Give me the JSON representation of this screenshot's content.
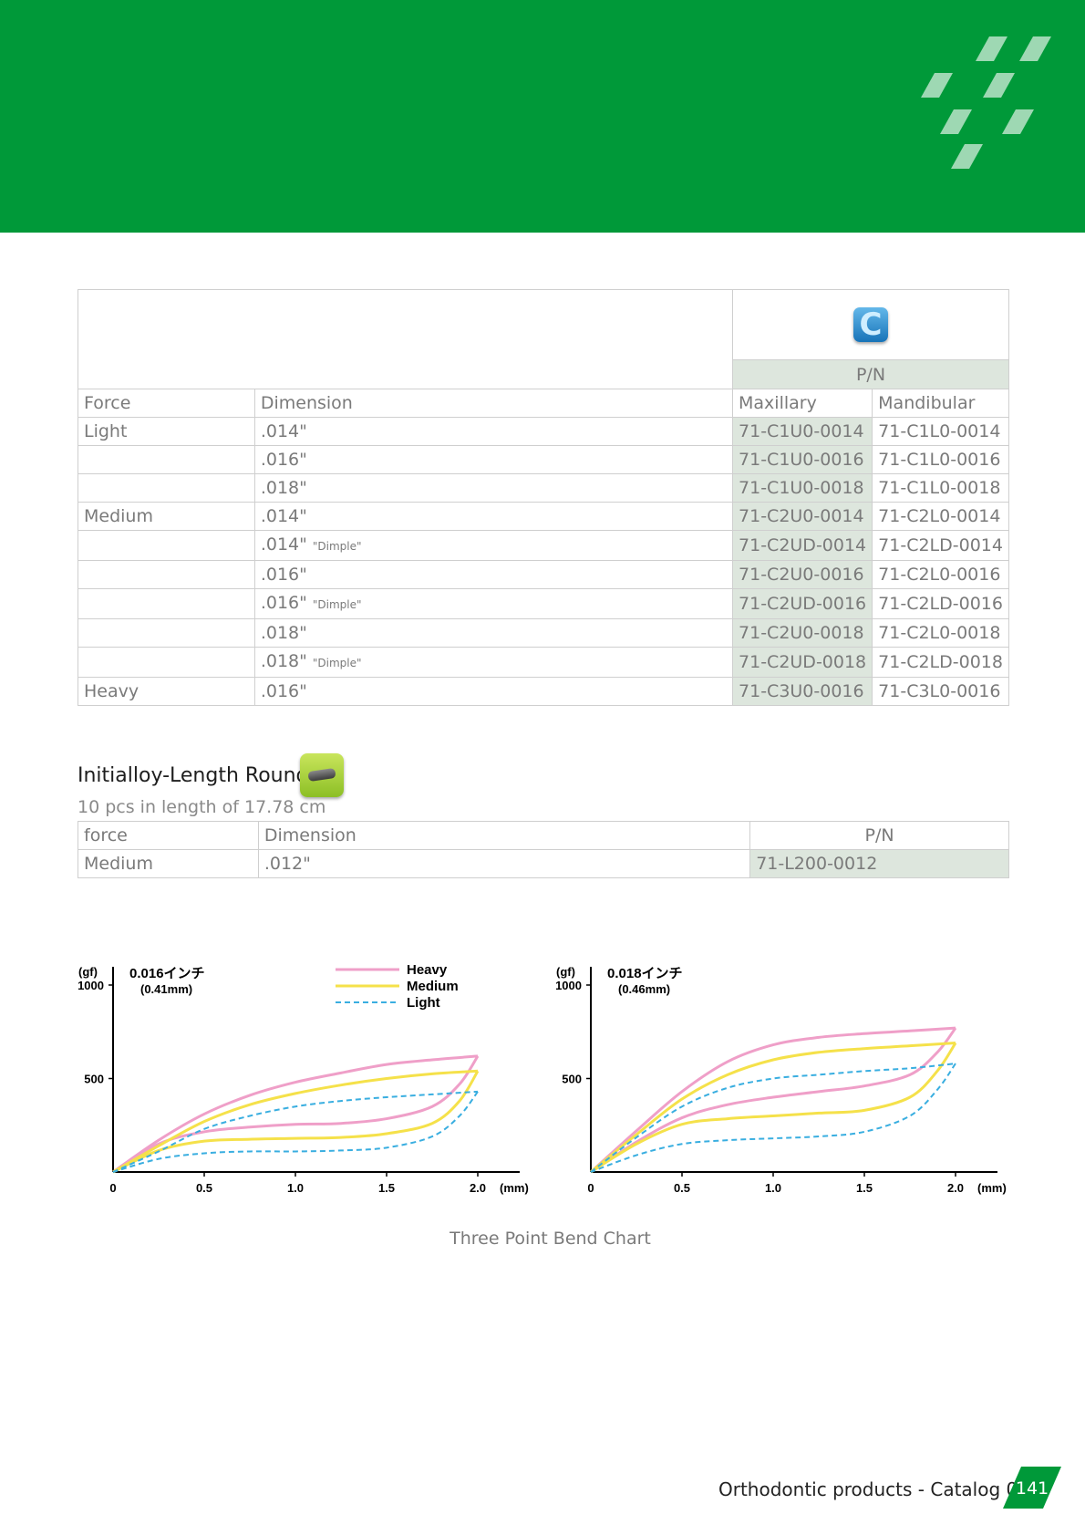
{
  "main_table": {
    "header": {
      "pn": "P/N"
    },
    "columns": [
      "Force",
      "Dimension",
      "Maxillary",
      "Mandibular"
    ],
    "icon_letter": "C",
    "rows": [
      {
        "force": "Light",
        "dim": ".014\"",
        "note": "",
        "max": "71-C1U0-0014",
        "man": "71-C1L0-0014"
      },
      {
        "force": "",
        "dim": ".016\"",
        "note": "",
        "max": "71-C1U0-0016",
        "man": "71-C1L0-0016"
      },
      {
        "force": "",
        "dim": ".018\"",
        "note": "",
        "max": "71-C1U0-0018",
        "man": "71-C1L0-0018"
      },
      {
        "force": "Medium",
        "dim": ".014\"",
        "note": "",
        "max": "71-C2U0-0014",
        "man": "71-C2L0-0014"
      },
      {
        "force": "",
        "dim": ".014\"",
        "note": "\"Dimple\"",
        "max": "71-C2UD-0014",
        "man": "71-C2LD-0014"
      },
      {
        "force": "",
        "dim": ".016\"",
        "note": "",
        "max": "71-C2U0-0016",
        "man": "71-C2L0-0016"
      },
      {
        "force": "",
        "dim": ".016\"",
        "note": "\"Dimple\"",
        "max": "71-C2UD-0016",
        "man": "71-C2LD-0016"
      },
      {
        "force": "",
        "dim": ".018\"",
        "note": "",
        "max": "71-C2U0-0018",
        "man": "71-C2L0-0018"
      },
      {
        "force": "",
        "dim": ".018\"",
        "note": "\"Dimple\"",
        "max": "71-C2UD-0018",
        "man": "71-C2LD-0018"
      },
      {
        "force": "Heavy",
        "dim": ".016\"",
        "note": "",
        "max": "71-C3U0-0016",
        "man": "71-C3L0-0016"
      }
    ]
  },
  "length_section": {
    "title": "Initialloy-Length Round",
    "subtitle": "10 pcs in length of 17.78 cm",
    "columns": [
      "force",
      "Dimension",
      "P/N"
    ],
    "row": {
      "force": "Medium",
      "dim": ".012\"",
      "pn": "71-L200-0012"
    }
  },
  "chart_caption": "Three Point Bend Chart",
  "chart_data": [
    {
      "type": "line",
      "title": "0.016インチ",
      "subtitle": "(0.41mm)",
      "ylabel": "(gf)",
      "xlabel": "(mm)",
      "xlim": [
        0,
        2.25
      ],
      "ylim": [
        0,
        1000
      ],
      "xticks": [
        "0",
        "0.5",
        "1.0",
        "1.5",
        "2.0"
      ],
      "yticks": [
        "500",
        "1000"
      ],
      "legend_position": "top-right",
      "series": [
        {
          "name": "Heavy",
          "color": "#ef9fc8",
          "dash": false,
          "loading": [
            [
              0,
              0
            ],
            [
              0.25,
              170
            ],
            [
              0.5,
              310
            ],
            [
              0.75,
              410
            ],
            [
              1.0,
              480
            ],
            [
              1.25,
              530
            ],
            [
              1.5,
              575
            ],
            [
              1.75,
              600
            ],
            [
              2.0,
              620
            ]
          ],
          "unloading": [
            [
              2.0,
              620
            ],
            [
              1.9,
              470
            ],
            [
              1.75,
              350
            ],
            [
              1.5,
              285
            ],
            [
              1.25,
              260
            ],
            [
              1.0,
              255
            ],
            [
              0.75,
              240
            ],
            [
              0.5,
              215
            ],
            [
              0.25,
              150
            ],
            [
              0,
              0
            ]
          ]
        },
        {
          "name": "Medium",
          "color": "#f5e14a",
          "dash": false,
          "loading": [
            [
              0,
              0
            ],
            [
              0.25,
              140
            ],
            [
              0.5,
              270
            ],
            [
              0.75,
              360
            ],
            [
              1.0,
              420
            ],
            [
              1.25,
              465
            ],
            [
              1.5,
              500
            ],
            [
              1.75,
              525
            ],
            [
              2.0,
              540
            ]
          ],
          "unloading": [
            [
              2.0,
              540
            ],
            [
              1.9,
              380
            ],
            [
              1.75,
              260
            ],
            [
              1.5,
              205
            ],
            [
              1.25,
              185
            ],
            [
              1.0,
              180
            ],
            [
              0.75,
              175
            ],
            [
              0.5,
              165
            ],
            [
              0.25,
              115
            ],
            [
              0,
              0
            ]
          ]
        },
        {
          "name": "Light",
          "color": "#39aee0",
          "dash": true,
          "loading": [
            [
              0,
              0
            ],
            [
              0.25,
              110
            ],
            [
              0.5,
              230
            ],
            [
              0.75,
              300
            ],
            [
              1.0,
              350
            ],
            [
              1.25,
              380
            ],
            [
              1.5,
              400
            ],
            [
              1.75,
              415
            ],
            [
              2.0,
              430
            ]
          ],
          "unloading": [
            [
              2.0,
              430
            ],
            [
              1.9,
              300
            ],
            [
              1.75,
              190
            ],
            [
              1.5,
              130
            ],
            [
              1.25,
              115
            ],
            [
              1.0,
              110
            ],
            [
              0.75,
              110
            ],
            [
              0.5,
              100
            ],
            [
              0.25,
              70
            ],
            [
              0,
              0
            ]
          ]
        }
      ]
    },
    {
      "type": "line",
      "title": "0.018インチ",
      "subtitle": "(0.46mm)",
      "ylabel": "(gf)",
      "xlabel": "(mm)",
      "xlim": [
        0,
        2.25
      ],
      "ylim": [
        0,
        1000
      ],
      "xticks": [
        "0",
        "0.5",
        "1.0",
        "1.5",
        "2.0"
      ],
      "yticks": [
        "500",
        "1000"
      ],
      "series": [
        {
          "name": "Heavy",
          "color": "#ef9fc8",
          "dash": false,
          "loading": [
            [
              0,
              0
            ],
            [
              0.25,
              220
            ],
            [
              0.5,
              430
            ],
            [
              0.75,
              590
            ],
            [
              1.0,
              680
            ],
            [
              1.25,
              720
            ],
            [
              1.5,
              740
            ],
            [
              1.75,
              755
            ],
            [
              2.0,
              770
            ]
          ],
          "unloading": [
            [
              2.0,
              770
            ],
            [
              1.9,
              640
            ],
            [
              1.75,
              520
            ],
            [
              1.5,
              460
            ],
            [
              1.25,
              430
            ],
            [
              1.0,
              400
            ],
            [
              0.75,
              360
            ],
            [
              0.5,
              290
            ],
            [
              0.25,
              160
            ],
            [
              0,
              0
            ]
          ]
        },
        {
          "name": "Medium",
          "color": "#f5e14a",
          "dash": false,
          "loading": [
            [
              0,
              0
            ],
            [
              0.25,
              200
            ],
            [
              0.5,
              390
            ],
            [
              0.75,
              520
            ],
            [
              1.0,
              600
            ],
            [
              1.25,
              640
            ],
            [
              1.5,
              660
            ],
            [
              1.75,
              675
            ],
            [
              2.0,
              690
            ]
          ],
          "unloading": [
            [
              2.0,
              690
            ],
            [
              1.9,
              540
            ],
            [
              1.75,
              400
            ],
            [
              1.5,
              330
            ],
            [
              1.25,
              315
            ],
            [
              1.0,
              300
            ],
            [
              0.75,
              285
            ],
            [
              0.5,
              255
            ],
            [
              0.25,
              150
            ],
            [
              0,
              0
            ]
          ]
        },
        {
          "name": "Light",
          "color": "#39aee0",
          "dash": true,
          "loading": [
            [
              0,
              0
            ],
            [
              0.25,
              185
            ],
            [
              0.5,
              350
            ],
            [
              0.75,
              450
            ],
            [
              1.0,
              500
            ],
            [
              1.25,
              520
            ],
            [
              1.5,
              540
            ],
            [
              1.75,
              555
            ],
            [
              2.0,
              580
            ]
          ],
          "unloading": [
            [
              2.0,
              580
            ],
            [
              1.9,
              440
            ],
            [
              1.75,
              300
            ],
            [
              1.5,
              215
            ],
            [
              1.25,
              190
            ],
            [
              1.0,
              180
            ],
            [
              0.75,
              170
            ],
            [
              0.5,
              150
            ],
            [
              0.25,
              90
            ],
            [
              0,
              0
            ]
          ]
        }
      ]
    }
  ],
  "footer": {
    "text": "Orthodontic products - Catalog 05",
    "page": "141"
  },
  "colors": {
    "brand_green": "#009939",
    "pn_shade": "#dde6dd"
  }
}
